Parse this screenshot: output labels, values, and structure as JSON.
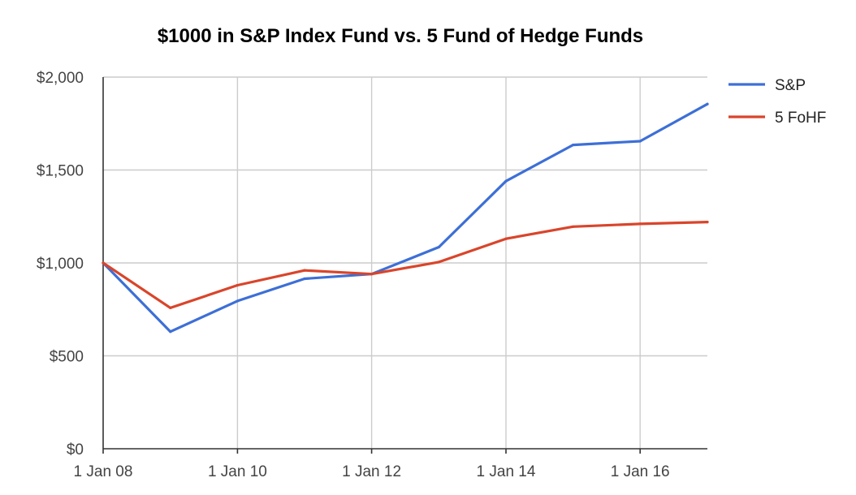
{
  "chart_data": {
    "type": "line",
    "title": "$1000 in S&P Index Fund vs. 5 Fund of Hedge Funds",
    "xlabel": "",
    "ylabel": "",
    "x": [
      "2008-01-01",
      "2009-01-01",
      "2010-01-01",
      "2011-01-01",
      "2012-01-01",
      "2013-01-01",
      "2014-01-01",
      "2015-01-01",
      "2016-01-01",
      "2017-01-01"
    ],
    "x_range": [
      "2008-01-01",
      "2017-01-01"
    ],
    "x_ticks": [
      {
        "date": "2008-01-01",
        "label": "1 Jan 08"
      },
      {
        "date": "2010-01-01",
        "label": "1 Jan 10"
      },
      {
        "date": "2012-01-01",
        "label": "1 Jan 12"
      },
      {
        "date": "2014-01-01",
        "label": "1 Jan 14"
      },
      {
        "date": "2016-01-01",
        "label": "1 Jan 16"
      }
    ],
    "ylim": [
      0,
      2000
    ],
    "y_ticks": [
      {
        "value": 0,
        "label": "$0"
      },
      {
        "value": 500,
        "label": "$500"
      },
      {
        "value": 1000,
        "label": "$1,000"
      },
      {
        "value": 1500,
        "label": "$1,500"
      },
      {
        "value": 2000,
        "label": "$2,000"
      }
    ],
    "grid": true,
    "legend_position": "right",
    "series": [
      {
        "name": "S&P",
        "color": "#3d6fd6",
        "values": [
          1000,
          630,
          795,
          915,
          940,
          1085,
          1440,
          1635,
          1655,
          1855
        ]
      },
      {
        "name": "5 FoHF",
        "color": "#d9452b",
        "values": [
          1000,
          758,
          880,
          960,
          940,
          1005,
          1130,
          1195,
          1210,
          1220
        ]
      }
    ]
  }
}
